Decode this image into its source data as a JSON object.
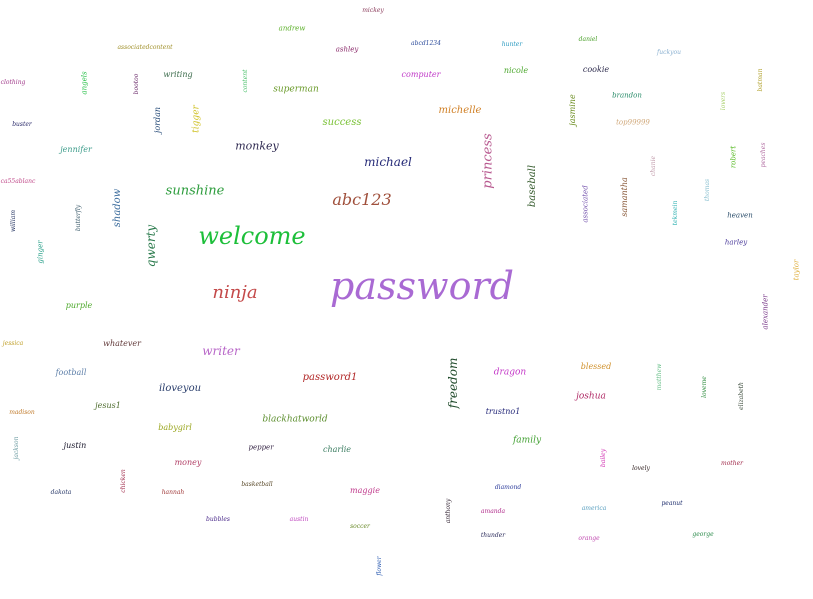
{
  "words": [
    {
      "text": "password",
      "color": "#a96ad3"
    },
    {
      "text": "welcome",
      "color": "#1dbf3a"
    },
    {
      "text": "ninja",
      "color": "#c44a4a"
    },
    {
      "text": "abc123",
      "color": "#a0503c"
    },
    {
      "text": "sunshine",
      "color": "#2c9c3c"
    },
    {
      "text": "michael",
      "color": "#262b78"
    },
    {
      "text": "monkey",
      "color": "#2e2950"
    },
    {
      "text": "princess",
      "color": "#b85a90"
    },
    {
      "text": "freedom",
      "color": "#1f4a2a"
    },
    {
      "text": "qwerty",
      "color": "#2a7a4c"
    },
    {
      "text": "shadow",
      "color": "#3e6e9e"
    },
    {
      "text": "success",
      "color": "#7ac236"
    },
    {
      "text": "superman",
      "color": "#6a9a2a"
    },
    {
      "text": "michelle",
      "color": "#d07f24"
    },
    {
      "text": "baseball",
      "color": "#365c2e"
    },
    {
      "text": "writer",
      "color": "#b866c8"
    },
    {
      "text": "iloveyou",
      "color": "#2a3e6c"
    },
    {
      "text": "password1",
      "color": "#b22a2a"
    },
    {
      "text": "blackhatworld",
      "color": "#5c8e2e"
    },
    {
      "text": "family",
      "color": "#3e9e2e"
    },
    {
      "text": "joshua",
      "color": "#b02a66"
    },
    {
      "text": "dragon",
      "color": "#c438c8"
    },
    {
      "text": "trustno1",
      "color": "#262a7a"
    },
    {
      "text": "blessed",
      "color": "#d0902a"
    },
    {
      "text": "charlie",
      "color": "#3a7c60"
    },
    {
      "text": "babygirl",
      "color": "#9aa61e"
    },
    {
      "text": "money",
      "color": "#b24268"
    },
    {
      "text": "maggie",
      "color": "#c03a8c"
    },
    {
      "text": "whatever",
      "color": "#623a3a"
    },
    {
      "text": "football",
      "color": "#5c7ea8"
    },
    {
      "text": "jesus1",
      "color": "#4e6c2e"
    },
    {
      "text": "justin",
      "color": "#1c1a2e"
    },
    {
      "text": "jennifer",
      "color": "#3c9c8a"
    },
    {
      "text": "purple",
      "color": "#4ca82a"
    },
    {
      "text": "computer",
      "color": "#c03ac8"
    },
    {
      "text": "tigger",
      "color": "#d0c228"
    },
    {
      "text": "jordan",
      "color": "#2a4e7a"
    },
    {
      "text": "writing",
      "color": "#3c6c4c"
    },
    {
      "text": "nicole",
      "color": "#4ca82e"
    },
    {
      "text": "cookie",
      "color": "#2c2a4c"
    },
    {
      "text": "jasmine",
      "color": "#6a8c1e"
    },
    {
      "text": "samantha",
      "color": "#8a5a3a"
    },
    {
      "text": "associated",
      "color": "#7a5ab0"
    },
    {
      "text": "brandon",
      "color": "#2a8c6a"
    },
    {
      "text": "top99999",
      "color": "#d0a87a"
    },
    {
      "text": "robert",
      "color": "#5cbc2a"
    },
    {
      "text": "heaven",
      "color": "#2a4c6a"
    },
    {
      "text": "harley",
      "color": "#4a3a9a"
    },
    {
      "text": "alexander",
      "color": "#7a3a8a"
    },
    {
      "text": "taylor",
      "color": "#e0b040"
    },
    {
      "text": "andrew",
      "color": "#5cb02a"
    },
    {
      "text": "ashley",
      "color": "#8a2a6a"
    },
    {
      "text": "mickey",
      "color": "#8a3a5a"
    },
    {
      "text": "abcd1234",
      "color": "#2a4a9a"
    },
    {
      "text": "hunter",
      "color": "#2a9ac0"
    },
    {
      "text": "daniel",
      "color": "#4aa02a"
    },
    {
      "text": "fuckyou",
      "color": "#8ab0d0"
    },
    {
      "text": "batman",
      "color": "#b0a02a"
    },
    {
      "text": "associatedcontent",
      "color": "#a0902a"
    },
    {
      "text": "angels",
      "color": "#2ac04a"
    },
    {
      "text": "bootoo",
      "color": "#6a2a6a"
    },
    {
      "text": "content",
      "color": "#4ac06a"
    },
    {
      "text": "clothing",
      "color": "#a03a8a"
    },
    {
      "text": "buster",
      "color": "#2a2a6a"
    },
    {
      "text": "ca55ablanc",
      "color": "#c04a8a"
    },
    {
      "text": "william",
      "color": "#1a2a5a"
    },
    {
      "text": "butterfly",
      "color": "#3a5a6a"
    },
    {
      "text": "ginger",
      "color": "#2aa08a"
    },
    {
      "text": "chanie",
      "color": "#c09aaa"
    },
    {
      "text": "thomas",
      "color": "#8ac0d0"
    },
    {
      "text": "tekmein",
      "color": "#2ab0b0"
    },
    {
      "text": "peaches",
      "color": "#b06aa0"
    },
    {
      "text": "lovers",
      "color": "#a8d06a"
    },
    {
      "text": "jessica",
      "color": "#c0a02a"
    },
    {
      "text": "madison",
      "color": "#c07a2a"
    },
    {
      "text": "jackson",
      "color": "#6a9aa0"
    },
    {
      "text": "dakota",
      "color": "#2a3a6a"
    },
    {
      "text": "chicken",
      "color": "#a02a4a"
    },
    {
      "text": "hannah",
      "color": "#a03a3a"
    },
    {
      "text": "bubbles",
      "color": "#4a2a8a"
    },
    {
      "text": "basketball",
      "color": "#5a4a2a"
    },
    {
      "text": "pepper",
      "color": "#3a2a4a"
    },
    {
      "text": "austin",
      "color": "#c04ac0"
    },
    {
      "text": "soccer",
      "color": "#6a8a2a"
    },
    {
      "text": "flower",
      "color": "#2a5ab0"
    },
    {
      "text": "anthony",
      "color": "#2a1a2a"
    },
    {
      "text": "amanda",
      "color": "#b02a8a"
    },
    {
      "text": "thunder",
      "color": "#2a2a5a"
    },
    {
      "text": "diamond",
      "color": "#2a3a9a"
    },
    {
      "text": "america",
      "color": "#5aa0c0"
    },
    {
      "text": "orange",
      "color": "#c04ab0"
    },
    {
      "text": "bailey",
      "color": "#d02ab0"
    },
    {
      "text": "lovely",
      "color": "#2a1a1a"
    },
    {
      "text": "peanut",
      "color": "#1a2a6a"
    },
    {
      "text": "george",
      "color": "#2a8a4a"
    },
    {
      "text": "mother",
      "color": "#a02a4a"
    },
    {
      "text": "matthew",
      "color": "#6ac08a"
    },
    {
      "text": "loveme",
      "color": "#2a8a3a"
    },
    {
      "text": "elizabeth",
      "color": "#3a4a3a"
    }
  ]
}
